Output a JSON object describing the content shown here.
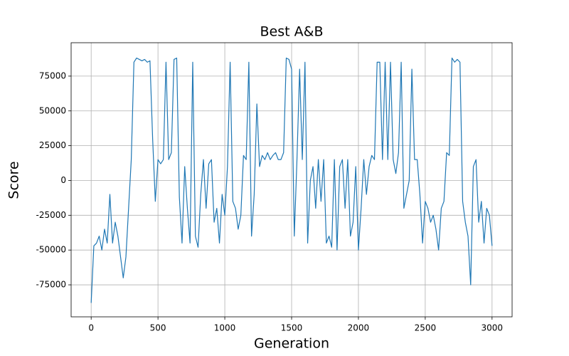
{
  "chart_data": {
    "type": "line",
    "title": "Best A&B",
    "x_label": "Generation",
    "y_label": "Score",
    "color": "#1f77b4",
    "grid": true,
    "xlim": [
      -150,
      3150
    ],
    "xticks": [
      0,
      500,
      1000,
      1500,
      2000,
      2500,
      3000
    ],
    "ylim": [
      -98000,
      99000
    ],
    "yticks": [
      -75000,
      -50000,
      -25000,
      0,
      25000,
      50000,
      75000
    ],
    "x": [
      0,
      20,
      40,
      60,
      80,
      100,
      120,
      140,
      160,
      180,
      200,
      220,
      240,
      260,
      280,
      300,
      320,
      340,
      360,
      380,
      400,
      420,
      440,
      460,
      480,
      500,
      520,
      540,
      560,
      580,
      600,
      620,
      640,
      660,
      680,
      700,
      720,
      740,
      760,
      780,
      800,
      820,
      840,
      860,
      880,
      900,
      920,
      940,
      960,
      980,
      1000,
      1020,
      1040,
      1060,
      1080,
      1100,
      1120,
      1140,
      1160,
      1180,
      1200,
      1220,
      1240,
      1260,
      1280,
      1300,
      1320,
      1340,
      1360,
      1380,
      1400,
      1420,
      1440,
      1460,
      1480,
      1500,
      1520,
      1540,
      1560,
      1580,
      1600,
      1620,
      1640,
      1660,
      1680,
      1700,
      1720,
      1740,
      1760,
      1780,
      1800,
      1820,
      1840,
      1860,
      1880,
      1900,
      1920,
      1940,
      1960,
      1980,
      2000,
      2020,
      2040,
      2060,
      2080,
      2100,
      2120,
      2140,
      2160,
      2180,
      2200,
      2220,
      2240,
      2260,
      2280,
      2300,
      2320,
      2340,
      2360,
      2380,
      2400,
      2420,
      2440,
      2460,
      2480,
      2500,
      2520,
      2540,
      2560,
      2580,
      2600,
      2620,
      2640,
      2660,
      2680,
      2700,
      2720,
      2740,
      2760,
      2780,
      2800,
      2820,
      2840,
      2860,
      2880,
      2900,
      2920,
      2940,
      2960,
      2980,
      3000
    ],
    "values": [
      -88000,
      -47000,
      -45000,
      -40000,
      -50000,
      -35000,
      -45000,
      -10000,
      -45000,
      -30000,
      -40000,
      -55000,
      -70000,
      -55000,
      -20000,
      15000,
      85000,
      88000,
      87000,
      86000,
      87000,
      85000,
      86000,
      30000,
      -15000,
      15000,
      12000,
      15000,
      85000,
      15000,
      20000,
      87000,
      88000,
      -12000,
      -45000,
      10000,
      -20000,
      -45000,
      85000,
      -40000,
      -48000,
      -10000,
      15000,
      -20000,
      12000,
      15000,
      -30000,
      -20000,
      -45000,
      -10000,
      -25000,
      10000,
      85000,
      -15000,
      -20000,
      -35000,
      -25000,
      18000,
      15000,
      85000,
      -40000,
      -10000,
      55000,
      10000,
      18000,
      15000,
      20000,
      15000,
      18000,
      20000,
      15000,
      15000,
      20000,
      88000,
      87000,
      80000,
      -40000,
      15000,
      80000,
      15000,
      85000,
      -45000,
      0,
      10000,
      -20000,
      15000,
      -15000,
      15000,
      -45000,
      -40000,
      -48000,
      15000,
      -50000,
      10000,
      15000,
      -20000,
      15000,
      -40000,
      -30000,
      10000,
      -50000,
      -20000,
      15000,
      -10000,
      10000,
      18000,
      15000,
      85000,
      85000,
      15000,
      85000,
      15000,
      85000,
      15000,
      5000,
      20000,
      85000,
      -20000,
      -10000,
      0,
      80000,
      15000,
      15000,
      -10000,
      -45000,
      -15000,
      -20000,
      -30000,
      -25000,
      -35000,
      -50000,
      -20000,
      -15000,
      20000,
      18000,
      88000,
      85000,
      87000,
      85000,
      -15000,
      -30000,
      -40000,
      -75000,
      10000,
      15000,
      -30000,
      -15000,
      -45000,
      -20000,
      -25000,
      -47000
    ]
  }
}
